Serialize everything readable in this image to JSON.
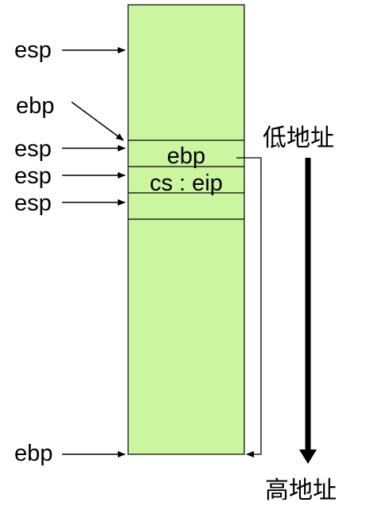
{
  "diagram": {
    "colors": {
      "stack_fill": "#ccf5a0",
      "line": "#000000"
    },
    "stack": {
      "cells": [
        "ebp",
        "cs : eip"
      ]
    },
    "pointers": [
      {
        "label": "esp"
      },
      {
        "label": "ebp"
      },
      {
        "label": "esp"
      },
      {
        "label": "esp"
      },
      {
        "label": "esp"
      },
      {
        "label": "ebp"
      }
    ],
    "direction": {
      "top_label": "低地址",
      "bottom_label": "高地址"
    }
  }
}
